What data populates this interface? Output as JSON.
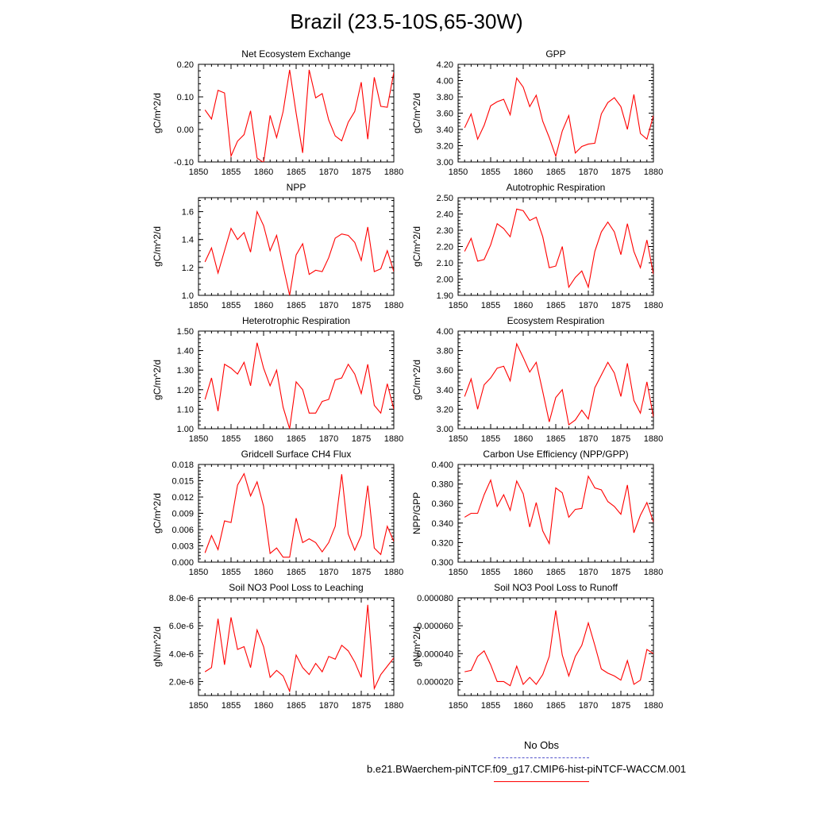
{
  "title": "Brazil (23.5-10S,65-30W)",
  "colors": {
    "line": "#ff0000",
    "obs": "#5555cc",
    "axis": "#000000"
  },
  "legend": {
    "obs_label": "No Obs",
    "case_label": "b.e21.BWaerchem-piNTCF.f09_g17.CMIP6-hist-piNTCF-WACCM.001"
  },
  "chart_data": [
    {
      "type": "line",
      "title": "Net Ecosystem Exchange",
      "ylabel": "gC/m^2/d",
      "xlim": [
        1850,
        1880
      ],
      "ylim": [
        -0.1,
        0.2
      ],
      "xticks": [
        1850,
        1855,
        1860,
        1865,
        1870,
        1875,
        1880
      ],
      "xtick_labels": [
        "1850",
        "1855",
        "1860",
        "1865",
        "1870",
        "1875",
        "1880"
      ],
      "yticks": [
        -0.1,
        0.0,
        0.1,
        0.2
      ],
      "ytick_labels": [
        "-0.10",
        "0.00",
        "0.10",
        "0.20"
      ],
      "x": [
        1851,
        1852,
        1853,
        1854,
        1855,
        1856,
        1857,
        1858,
        1859,
        1860,
        1861,
        1862,
        1863,
        1864,
        1865,
        1866,
        1867,
        1868,
        1869,
        1870,
        1871,
        1872,
        1873,
        1874,
        1875,
        1876,
        1877,
        1878,
        1879,
        1880
      ],
      "y": [
        0.06,
        0.032,
        0.12,
        0.112,
        -0.082,
        -0.036,
        -0.016,
        0.057,
        -0.088,
        -0.102,
        0.043,
        -0.025,
        0.055,
        0.183,
        0.05,
        -0.072,
        0.183,
        0.097,
        0.11,
        0.029,
        -0.02,
        -0.035,
        0.022,
        0.055,
        0.145,
        -0.03,
        0.16,
        0.071,
        0.068,
        0.175
      ]
    },
    {
      "type": "line",
      "title": "GPP",
      "ylabel": "gC/m^2/d",
      "xlim": [
        1850,
        1880
      ],
      "ylim": [
        3.0,
        4.2
      ],
      "xticks": [
        1850,
        1855,
        1860,
        1865,
        1870,
        1875,
        1880
      ],
      "xtick_labels": [
        "1850",
        "1855",
        "1860",
        "1865",
        "1870",
        "1875",
        "1880"
      ],
      "yticks": [
        3.0,
        3.2,
        3.4,
        3.6,
        3.8,
        4.0,
        4.2
      ],
      "ytick_labels": [
        "3.00",
        "3.20",
        "3.40",
        "3.60",
        "3.80",
        "4.00",
        "4.20"
      ],
      "x": [
        1851,
        1852,
        1853,
        1854,
        1855,
        1856,
        1857,
        1858,
        1859,
        1860,
        1861,
        1862,
        1863,
        1864,
        1865,
        1866,
        1867,
        1868,
        1869,
        1870,
        1871,
        1872,
        1873,
        1874,
        1875,
        1876,
        1877,
        1878,
        1879,
        1880
      ],
      "y": [
        3.42,
        3.59,
        3.28,
        3.45,
        3.69,
        3.74,
        3.77,
        3.58,
        4.03,
        3.92,
        3.68,
        3.82,
        3.5,
        3.3,
        3.07,
        3.38,
        3.57,
        3.11,
        3.19,
        3.22,
        3.23,
        3.59,
        3.73,
        3.79,
        3.68,
        3.4,
        3.83,
        3.35,
        3.28,
        3.57
      ]
    },
    {
      "type": "line",
      "title": "NPP",
      "ylabel": "gC/m^2/d",
      "xlim": [
        1850,
        1880
      ],
      "ylim": [
        1.0,
        1.7
      ],
      "xticks": [
        1850,
        1855,
        1860,
        1865,
        1870,
        1875,
        1880
      ],
      "xtick_labels": [
        "1850",
        "1855",
        "1860",
        "1865",
        "1870",
        "1875",
        "1880"
      ],
      "yticks": [
        1.0,
        1.2,
        1.4,
        1.6
      ],
      "ytick_labels": [
        "1.0",
        "1.2",
        "1.4",
        "1.6"
      ],
      "x": [
        1851,
        1852,
        1853,
        1854,
        1855,
        1856,
        1857,
        1858,
        1859,
        1860,
        1861,
        1862,
        1863,
        1864,
        1865,
        1866,
        1867,
        1868,
        1869,
        1870,
        1871,
        1872,
        1873,
        1874,
        1875,
        1876,
        1877,
        1878,
        1879,
        1880
      ],
      "y": [
        1.24,
        1.34,
        1.16,
        1.32,
        1.48,
        1.4,
        1.45,
        1.31,
        1.6,
        1.5,
        1.32,
        1.43,
        1.21,
        1.0,
        1.29,
        1.37,
        1.15,
        1.18,
        1.17,
        1.27,
        1.41,
        1.44,
        1.43,
        1.38,
        1.25,
        1.49,
        1.17,
        1.19,
        1.32,
        1.17
      ]
    },
    {
      "type": "line",
      "title": "Autotrophic Respiration",
      "ylabel": "gC/m^2/d",
      "xlim": [
        1850,
        1880
      ],
      "ylim": [
        1.9,
        2.5
      ],
      "xticks": [
        1850,
        1855,
        1860,
        1865,
        1870,
        1875,
        1880
      ],
      "xtick_labels": [
        "1850",
        "1855",
        "1860",
        "1865",
        "1870",
        "1875",
        "1880"
      ],
      "yticks": [
        1.9,
        2.0,
        2.1,
        2.2,
        2.3,
        2.4,
        2.5
      ],
      "ytick_labels": [
        "1.90",
        "2.00",
        "2.10",
        "2.20",
        "2.30",
        "2.40",
        "2.50"
      ],
      "x": [
        1851,
        1852,
        1853,
        1854,
        1855,
        1856,
        1857,
        1858,
        1859,
        1860,
        1861,
        1862,
        1863,
        1864,
        1865,
        1866,
        1867,
        1868,
        1869,
        1870,
        1871,
        1872,
        1873,
        1874,
        1875,
        1876,
        1877,
        1878,
        1879,
        1880
      ],
      "y": [
        2.17,
        2.25,
        2.11,
        2.12,
        2.21,
        2.34,
        2.31,
        2.26,
        2.43,
        2.42,
        2.36,
        2.38,
        2.26,
        2.07,
        2.08,
        2.2,
        1.95,
        2.01,
        2.05,
        1.95,
        2.17,
        2.29,
        2.35,
        2.29,
        2.15,
        2.34,
        2.17,
        2.07,
        2.24,
        2.03
      ]
    },
    {
      "type": "line",
      "title": "Heterotrophic Respiration",
      "ylabel": "gC/m^2/d",
      "xlim": [
        1850,
        1880
      ],
      "ylim": [
        1.0,
        1.5
      ],
      "xticks": [
        1850,
        1855,
        1860,
        1865,
        1870,
        1875,
        1880
      ],
      "xtick_labels": [
        "1850",
        "1855",
        "1860",
        "1865",
        "1870",
        "1875",
        "1880"
      ],
      "yticks": [
        1.0,
        1.1,
        1.2,
        1.3,
        1.4,
        1.5
      ],
      "ytick_labels": [
        "1.00",
        "1.10",
        "1.20",
        "1.30",
        "1.40",
        "1.50"
      ],
      "x": [
        1851,
        1852,
        1853,
        1854,
        1855,
        1856,
        1857,
        1858,
        1859,
        1860,
        1861,
        1862,
        1863,
        1864,
        1865,
        1866,
        1867,
        1868,
        1869,
        1870,
        1871,
        1872,
        1873,
        1874,
        1875,
        1876,
        1877,
        1878,
        1879,
        1880
      ],
      "y": [
        1.15,
        1.26,
        1.09,
        1.33,
        1.31,
        1.28,
        1.34,
        1.22,
        1.44,
        1.31,
        1.22,
        1.3,
        1.11,
        1.0,
        1.24,
        1.2,
        1.08,
        1.08,
        1.14,
        1.15,
        1.25,
        1.26,
        1.33,
        1.28,
        1.18,
        1.33,
        1.12,
        1.08,
        1.23,
        1.1
      ]
    },
    {
      "type": "line",
      "title": "Ecosystem Respiration",
      "ylabel": "gC/m^2/d",
      "xlim": [
        1850,
        1880
      ],
      "ylim": [
        3.0,
        4.0
      ],
      "xticks": [
        1850,
        1855,
        1860,
        1865,
        1870,
        1875,
        1880
      ],
      "xtick_labels": [
        "1850",
        "1855",
        "1860",
        "1865",
        "1870",
        "1875",
        "1880"
      ],
      "yticks": [
        3.0,
        3.2,
        3.4,
        3.6,
        3.8,
        4.0
      ],
      "ytick_labels": [
        "3.00",
        "3.20",
        "3.40",
        "3.60",
        "3.80",
        "4.00"
      ],
      "x": [
        1851,
        1852,
        1853,
        1854,
        1855,
        1856,
        1857,
        1858,
        1859,
        1860,
        1861,
        1862,
        1863,
        1864,
        1865,
        1866,
        1867,
        1868,
        1869,
        1870,
        1871,
        1872,
        1873,
        1874,
        1875,
        1876,
        1877,
        1878,
        1879,
        1880
      ],
      "y": [
        3.33,
        3.51,
        3.2,
        3.45,
        3.52,
        3.62,
        3.64,
        3.49,
        3.87,
        3.73,
        3.58,
        3.68,
        3.38,
        3.07,
        3.32,
        3.4,
        3.04,
        3.09,
        3.19,
        3.1,
        3.42,
        3.55,
        3.68,
        3.57,
        3.33,
        3.67,
        3.29,
        3.16,
        3.48,
        3.12
      ]
    },
    {
      "type": "line",
      "title": "Gridcell Surface CH4 Flux",
      "ylabel": "gC/m^2/d",
      "xlim": [
        1850,
        1880
      ],
      "ylim": [
        0.0,
        0.018
      ],
      "xticks": [
        1850,
        1855,
        1860,
        1865,
        1870,
        1875,
        1880
      ],
      "xtick_labels": [
        "1850",
        "1855",
        "1860",
        "1865",
        "1870",
        "1875",
        "1880"
      ],
      "yticks": [
        0.0,
        0.003,
        0.006,
        0.009,
        0.012,
        0.015,
        0.018
      ],
      "ytick_labels": [
        "0.000",
        "0.003",
        "0.006",
        "0.009",
        "0.012",
        "0.015",
        "0.018"
      ],
      "x": [
        1851,
        1852,
        1853,
        1854,
        1855,
        1856,
        1857,
        1858,
        1859,
        1860,
        1861,
        1862,
        1863,
        1864,
        1865,
        1866,
        1867,
        1868,
        1869,
        1870,
        1871,
        1872,
        1873,
        1874,
        1875,
        1876,
        1877,
        1878,
        1879,
        1880
      ],
      "y": [
        0.0017,
        0.0049,
        0.0023,
        0.0076,
        0.0073,
        0.0142,
        0.0163,
        0.0122,
        0.0148,
        0.0103,
        0.0016,
        0.0026,
        0.0009,
        0.0009,
        0.0081,
        0.0036,
        0.0043,
        0.0036,
        0.0019,
        0.0036,
        0.0066,
        0.0162,
        0.0052,
        0.0022,
        0.0049,
        0.0141,
        0.0026,
        0.0014,
        0.0066,
        0.0038
      ]
    },
    {
      "type": "line",
      "title": "Carbon Use Efficiency (NPP/GPP)",
      "ylabel": "NPP/GPP",
      "xlim": [
        1850,
        1880
      ],
      "ylim": [
        0.3,
        0.4
      ],
      "xticks": [
        1850,
        1855,
        1860,
        1865,
        1870,
        1875,
        1880
      ],
      "xtick_labels": [
        "1850",
        "1855",
        "1860",
        "1865",
        "1870",
        "1875",
        "1880"
      ],
      "yticks": [
        0.3,
        0.32,
        0.34,
        0.36,
        0.38,
        0.4
      ],
      "ytick_labels": [
        "0.300",
        "0.320",
        "0.340",
        "0.360",
        "0.380",
        "0.400"
      ],
      "x": [
        1851,
        1852,
        1853,
        1854,
        1855,
        1856,
        1857,
        1858,
        1859,
        1860,
        1861,
        1862,
        1863,
        1864,
        1865,
        1866,
        1867,
        1868,
        1869,
        1870,
        1871,
        1872,
        1873,
        1874,
        1875,
        1876,
        1877,
        1878,
        1879,
        1880
      ],
      "y": [
        0.346,
        0.35,
        0.35,
        0.369,
        0.384,
        0.357,
        0.369,
        0.353,
        0.383,
        0.37,
        0.336,
        0.361,
        0.332,
        0.319,
        0.376,
        0.371,
        0.346,
        0.354,
        0.355,
        0.388,
        0.376,
        0.374,
        0.362,
        0.357,
        0.349,
        0.379,
        0.33,
        0.348,
        0.361,
        0.341
      ]
    },
    {
      "type": "line",
      "title": "Soil NO3 Pool Loss to Leaching",
      "ylabel": "gN/m^2/d",
      "xlim": [
        1850,
        1880
      ],
      "ylim": [
        1e-06,
        8e-06
      ],
      "xticks": [
        1850,
        1855,
        1860,
        1865,
        1870,
        1875,
        1880
      ],
      "xtick_labels": [
        "1850",
        "1855",
        "1860",
        "1865",
        "1870",
        "1875",
        "1880"
      ],
      "yticks": [
        2e-06,
        4e-06,
        6e-06,
        8e-06
      ],
      "ytick_labels": [
        "2.0e-6",
        "4.0e-6",
        "6.0e-6",
        "8.0e-6"
      ],
      "x": [
        1851,
        1852,
        1853,
        1854,
        1855,
        1856,
        1857,
        1858,
        1859,
        1860,
        1861,
        1862,
        1863,
        1864,
        1865,
        1866,
        1867,
        1868,
        1869,
        1870,
        1871,
        1872,
        1873,
        1874,
        1875,
        1876,
        1877,
        1878,
        1879,
        1880
      ],
      "y": [
        2.7e-06,
        3e-06,
        6.5e-06,
        3.2e-06,
        6.6e-06,
        4.3e-06,
        4.5e-06,
        3e-06,
        5.7e-06,
        4.5e-06,
        2.3e-06,
        2.8e-06,
        2.4e-06,
        1.3e-06,
        3.9e-06,
        3e-06,
        2.5e-06,
        3.3e-06,
        2.7e-06,
        3.8e-06,
        3.6e-06,
        4.6e-06,
        4.2e-06,
        3.4e-06,
        2.3e-06,
        7.5e-06,
        1.5e-06,
        2.5e-06,
        3.1e-06,
        3.7e-06
      ]
    },
    {
      "type": "line",
      "title": "Soil NO3 Pool Loss to Runoff",
      "ylabel": "gN/m^2/d",
      "xlim": [
        1850,
        1880
      ],
      "ylim": [
        1e-05,
        8e-05
      ],
      "xticks": [
        1850,
        1855,
        1860,
        1865,
        1870,
        1875,
        1880
      ],
      "xtick_labels": [
        "1850",
        "1855",
        "1860",
        "1865",
        "1870",
        "1875",
        "1880"
      ],
      "yticks": [
        2e-05,
        4e-05,
        6e-05,
        8e-05
      ],
      "ytick_labels": [
        "0.000020",
        "0.000040",
        "0.000060",
        "0.000080"
      ],
      "x": [
        1851,
        1852,
        1853,
        1854,
        1855,
        1856,
        1857,
        1858,
        1859,
        1860,
        1861,
        1862,
        1863,
        1864,
        1865,
        1866,
        1867,
        1868,
        1869,
        1870,
        1871,
        1872,
        1873,
        1874,
        1875,
        1876,
        1877,
        1878,
        1879,
        1880
      ],
      "y": [
        2.7e-05,
        2.8e-05,
        3.8e-05,
        4.2e-05,
        3.2e-05,
        2e-05,
        2e-05,
        1.7e-05,
        3.1e-05,
        1.8e-05,
        2.3e-05,
        1.8e-05,
        2.5e-05,
        3.8e-05,
        7.1e-05,
        3.9e-05,
        2.4e-05,
        3.8e-05,
        4.6e-05,
        6.2e-05,
        4.6e-05,
        2.9e-05,
        2.6e-05,
        2.4e-05,
        2.1e-05,
        3.5e-05,
        1.8e-05,
        2.1e-05,
        4.3e-05,
        4e-05
      ]
    }
  ]
}
